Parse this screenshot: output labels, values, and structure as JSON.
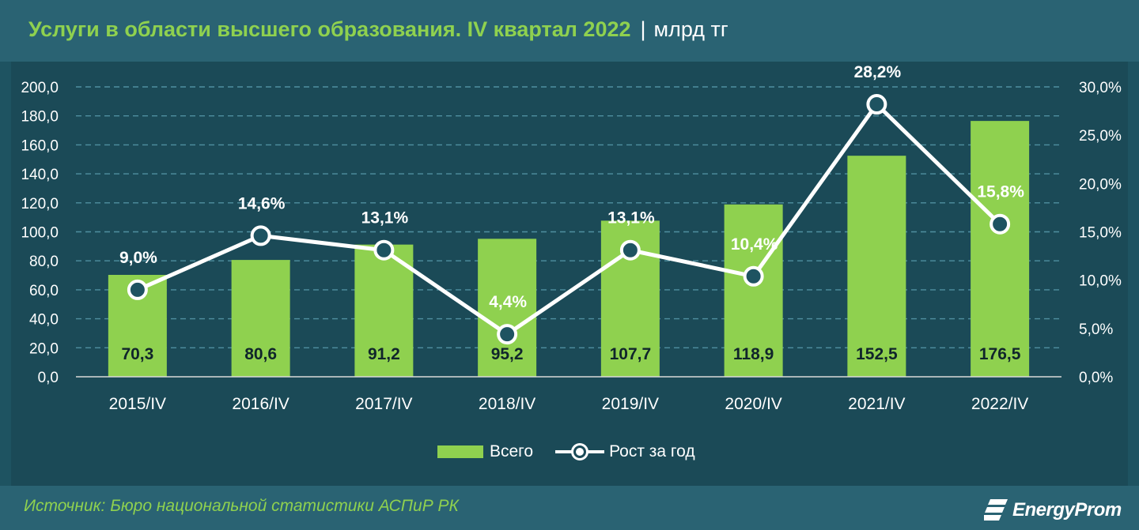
{
  "header": {
    "title": "Услуги в области высшего образования. IV квартал 2022",
    "separator": "|",
    "unit": "млрд тг"
  },
  "footer": {
    "source": "Источник: Бюро национальной статистики АСПиР РК",
    "logo_text": "EnergyProm",
    "logo_icon": "energyprom-logo-icon"
  },
  "colors": {
    "background": "#1e5361",
    "plot_background": "#1b4a57",
    "bar": "#8fd14f",
    "line": "#ffffff",
    "title": "#8fd14f"
  },
  "chart_data": {
    "type": "bar",
    "categories": [
      "2015/IV",
      "2016/IV",
      "2017/IV",
      "2018/IV",
      "2019/IV",
      "2020/IV",
      "2021/IV",
      "2022/IV"
    ],
    "series": [
      {
        "name": "Всего",
        "type": "bar",
        "axis": "left",
        "values": [
          70.3,
          80.6,
          91.2,
          95.2,
          107.7,
          118.9,
          152.5,
          176.5
        ],
        "labels": [
          "70,3",
          "80,6",
          "91,2",
          "95,2",
          "107,7",
          "118,9",
          "152,5",
          "176,5"
        ]
      },
      {
        "name": "Рост за год",
        "type": "line",
        "axis": "right",
        "values": [
          9.0,
          14.6,
          13.1,
          4.4,
          13.1,
          10.4,
          28.2,
          15.8
        ],
        "labels": [
          "9,0%",
          "14,6%",
          "13,1%",
          "4,4%",
          "13,1%",
          "10,4%",
          "28,2%",
          "15,8%"
        ]
      }
    ],
    "y_left": {
      "range": [
        0,
        200
      ],
      "ticks": [
        "0,0",
        "20,0",
        "40,0",
        "60,0",
        "80,0",
        "100,0",
        "120,0",
        "140,0",
        "160,0",
        "180,0",
        "200,0"
      ]
    },
    "y_right": {
      "range": [
        0,
        30
      ],
      "ticks": [
        "0,0%",
        "5,0%",
        "10,0%",
        "15,0%",
        "20,0%",
        "25,0%",
        "30,0%"
      ]
    },
    "grid": true,
    "legend_position": "bottom"
  }
}
